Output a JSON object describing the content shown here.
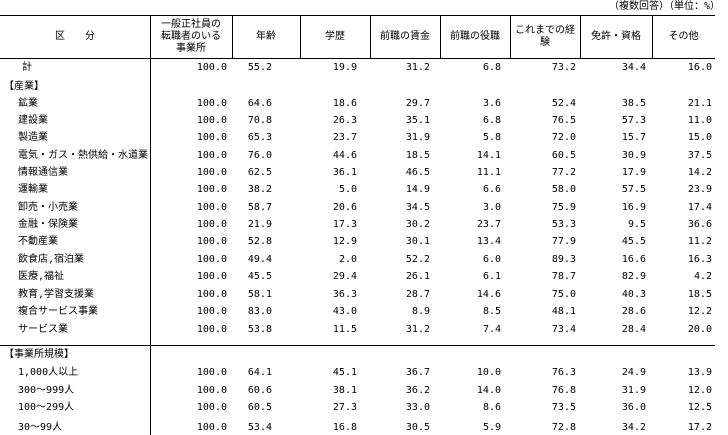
{
  "note": "（複数回答）（単位：%）",
  "table": {
    "header": [
      "区　　分",
      "一般正社員の転職者のいる事業所",
      "年齢",
      "学歴",
      "前職の賃金",
      "前職の役職",
      "これまでの経験",
      "免許・資格",
      "その他"
    ],
    "rows": [
      {
        "label": "計",
        "values": [
          "100.0",
          "55.2",
          "19.9",
          "31.2",
          "6.8",
          "73.2",
          "34.4",
          "16.0"
        ]
      },
      {
        "label": "【産業】"
      },
      {
        "label": "鉱業",
        "values": [
          "100.0",
          "64.6",
          "18.6",
          "29.7",
          "3.6",
          "52.4",
          "38.5",
          "21.1"
        ]
      },
      {
        "label": "建設業",
        "values": [
          "100.0",
          "70.8",
          "26.3",
          "35.1",
          "6.8",
          "76.5",
          "57.3",
          "11.0"
        ]
      },
      {
        "label": "製造業",
        "values": [
          "100.0",
          "65.3",
          "23.7",
          "31.9",
          "5.8",
          "72.0",
          "15.7",
          "15.0"
        ]
      },
      {
        "label": "電気・ガス・熱供給・水道業",
        "values": [
          "100.0",
          "76.0",
          "44.6",
          "18.5",
          "14.1",
          "60.5",
          "30.9",
          "37.5"
        ]
      },
      {
        "label": "情報通信業",
        "values": [
          "100.0",
          "62.5",
          "36.1",
          "46.5",
          "11.1",
          "77.2",
          "17.9",
          "14.2"
        ]
      },
      {
        "label": "運輸業",
        "values": [
          "100.0",
          "38.2",
          "5.0",
          "14.9",
          "6.6",
          "58.0",
          "57.5",
          "23.9"
        ]
      },
      {
        "label": "卸売・小売業",
        "values": [
          "100.0",
          "58.7",
          "20.6",
          "34.5",
          "3.0",
          "75.9",
          "16.9",
          "17.4"
        ]
      },
      {
        "label": "金融・保険業",
        "values": [
          "100.0",
          "21.9",
          "17.3",
          "30.2",
          "23.7",
          "53.3",
          "9.5",
          "36.6"
        ]
      },
      {
        "label": "不動産業",
        "values": [
          "100.0",
          "52.8",
          "12.9",
          "30.1",
          "13.4",
          "77.9",
          "45.5",
          "11.2"
        ]
      },
      {
        "label": "飲食店,宿泊業",
        "values": [
          "100.0",
          "49.4",
          "2.0",
          "52.2",
          "6.0",
          "89.3",
          "16.6",
          "16.3"
        ]
      },
      {
        "label": "医療,福祉",
        "values": [
          "100.0",
          "45.5",
          "29.4",
          "26.1",
          "6.1",
          "78.7",
          "82.9",
          "4.2"
        ]
      },
      {
        "label": "教育,学習支援業",
        "values": [
          "100.0",
          "58.1",
          "36.3",
          "28.7",
          "14.6",
          "75.0",
          "40.3",
          "18.5"
        ]
      },
      {
        "label": "複合サービス事業",
        "values": [
          "100.0",
          "83.0",
          "43.0",
          "8.9",
          "8.5",
          "48.1",
          "28.6",
          "12.2"
        ]
      },
      {
        "label": "サービス業",
        "values": [
          "100.0",
          "53.8",
          "11.5",
          "31.2",
          "7.4",
          "73.4",
          "28.4",
          "20.0"
        ]
      },
      {
        "label": "【事業所規模】"
      },
      {
        "label": "1,000人以上",
        "values": [
          "100.0",
          "64.1",
          "45.1",
          "36.7",
          "10.0",
          "76.3",
          "24.9",
          "13.9"
        ]
      },
      {
        "label": "300～999人",
        "values": [
          "100.0",
          "60.6",
          "38.1",
          "36.2",
          "14.0",
          "76.8",
          "31.9",
          "12.0"
        ]
      },
      {
        "label": "100～299人",
        "values": [
          "100.0",
          "60.5",
          "27.3",
          "33.0",
          "8.6",
          "73.5",
          "36.0",
          "12.5"
        ]
      },
      {
        "label": "30～99人",
        "values": [
          "100.0",
          "53.4",
          "16.8",
          "30.5",
          "5.9",
          "72.8",
          "34.2",
          "17.2"
        ]
      }
    ]
  }
}
